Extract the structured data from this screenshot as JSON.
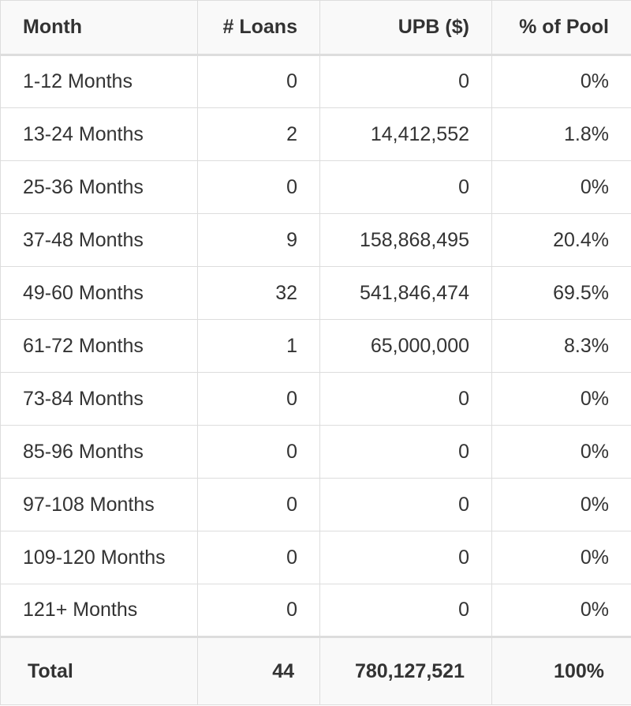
{
  "table": {
    "headers": [
      "Month",
      "# Loans",
      "UPB ($)",
      "% of Pool"
    ],
    "rows": [
      [
        "1-12 Months",
        "0",
        "0",
        "0%"
      ],
      [
        "13-24 Months",
        "2",
        "14,412,552",
        "1.8%"
      ],
      [
        "25-36 Months",
        "0",
        "0",
        "0%"
      ],
      [
        "37-48 Months",
        "9",
        "158,868,495",
        "20.4%"
      ],
      [
        "49-60 Months",
        "32",
        "541,846,474",
        "69.5%"
      ],
      [
        "61-72 Months",
        "1",
        "65,000,000",
        "8.3%"
      ],
      [
        "73-84 Months",
        "0",
        "0",
        "0%"
      ],
      [
        "85-96 Months",
        "0",
        "0",
        "0%"
      ],
      [
        "97-108 Months",
        "0",
        "0",
        "0%"
      ],
      [
        "109-120 Months",
        "0",
        "0",
        "0%"
      ],
      [
        "121+ Months",
        "0",
        "0",
        "0%"
      ]
    ],
    "total": [
      "Total",
      "44",
      "780,127,521",
      "100%"
    ]
  }
}
